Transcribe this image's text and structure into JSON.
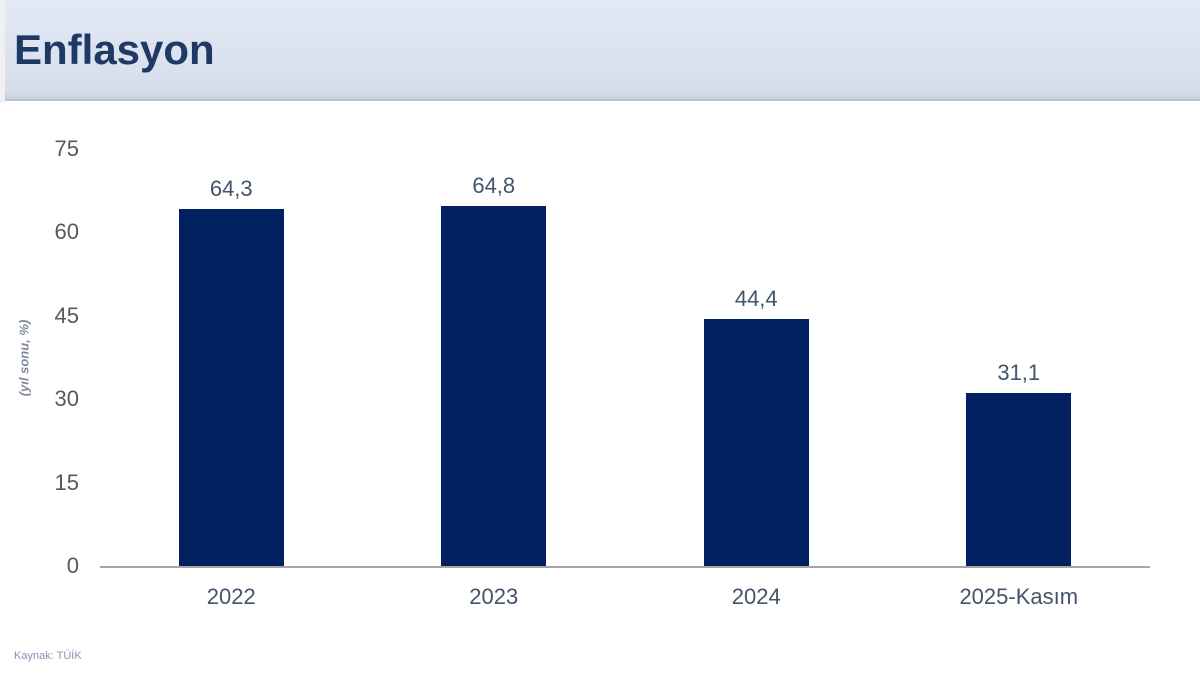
{
  "header": {
    "title": "Enflasyon"
  },
  "footer": {
    "source": "Kaynak: TÜİK"
  },
  "colors": {
    "bar": "#002060",
    "title": "#1f3864",
    "header_band": "#dce3f0",
    "axis_line": "#a6a6a6",
    "tick_text": "#595959",
    "label_text": "#44546a"
  },
  "chart_data": {
    "type": "bar",
    "title": "Enflasyon",
    "categories": [
      "2022",
      "2023",
      "2024",
      "2025-Kasım"
    ],
    "values": [
      64.3,
      64.8,
      44.4,
      31.1
    ],
    "value_labels": [
      "64,3",
      "64,8",
      "44,4",
      "31,1"
    ],
    "xlabel": "",
    "ylabel": "(yıl sonu, %)",
    "ylim": [
      0,
      75
    ],
    "yticks": [
      0,
      15,
      30,
      45,
      60,
      75
    ],
    "bar_color": "#002060",
    "grid": false,
    "legend_position": "none"
  }
}
